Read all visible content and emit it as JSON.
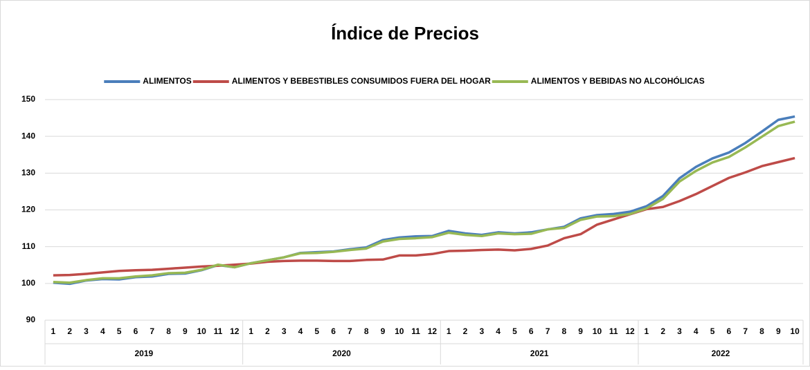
{
  "chart_data": {
    "type": "line",
    "title": "Índice de Precios",
    "groups": [
      {
        "label": "2019",
        "categories": [
          "1",
          "2",
          "3",
          "4",
          "5",
          "6",
          "7",
          "8",
          "9",
          "10",
          "11",
          "12"
        ]
      },
      {
        "label": "2020",
        "categories": [
          "1",
          "2",
          "3",
          "4",
          "5",
          "6",
          "7",
          "8",
          "9",
          "10",
          "11",
          "12"
        ]
      },
      {
        "label": "2021",
        "categories": [
          "1",
          "2",
          "3",
          "4",
          "5",
          "6",
          "7",
          "8",
          "9",
          "10",
          "11",
          "12"
        ]
      },
      {
        "label": "2022",
        "categories": [
          "1",
          "2",
          "3",
          "4",
          "5",
          "6",
          "7",
          "8",
          "9",
          "10"
        ]
      }
    ],
    "series": [
      {
        "name": "ALIMENTOS",
        "color": "#4a7ebb",
        "values": [
          100.2,
          99.9,
          100.8,
          101.2,
          101.1,
          101.7,
          101.9,
          102.6,
          102.7,
          103.6,
          105.0,
          104.4,
          105.5,
          106.3,
          107.1,
          108.3,
          108.5,
          108.7,
          109.3,
          109.8,
          111.8,
          112.5,
          112.8,
          112.9,
          114.3,
          113.6,
          113.2,
          113.9,
          113.6,
          113.9,
          114.7,
          115.4,
          117.7,
          118.6,
          118.9,
          119.5,
          121.0,
          123.8,
          128.6,
          131.7,
          134.0,
          135.6,
          138.2,
          141.3,
          144.5,
          145.4
        ]
      },
      {
        "name": "ALIMENTOS Y BEBESTIBLES CONSUMIDOS FUERA DEL HOGAR",
        "color": "#be4b48",
        "values": [
          102.2,
          102.3,
          102.6,
          103.0,
          103.4,
          103.6,
          103.7,
          104.0,
          104.3,
          104.6,
          104.8,
          105.1,
          105.4,
          105.9,
          106.1,
          106.2,
          106.2,
          106.1,
          106.1,
          106.4,
          106.5,
          107.6,
          107.6,
          108.0,
          108.8,
          108.9,
          109.1,
          109.2,
          109.0,
          109.4,
          110.3,
          112.3,
          113.4,
          116.0,
          117.4,
          118.8,
          120.2,
          120.8,
          122.4,
          124.3,
          126.5,
          128.7,
          130.2,
          131.9,
          133.0,
          134.1
        ]
      },
      {
        "name": "ALIMENTOS Y BEBIDAS NO ALCOHÓLICAS",
        "color": "#98b954",
        "values": [
          100.4,
          100.2,
          100.9,
          101.4,
          101.4,
          101.9,
          102.2,
          102.8,
          102.9,
          103.7,
          105.1,
          104.4,
          105.5,
          106.3,
          107.1,
          108.2,
          108.3,
          108.6,
          109.1,
          109.5,
          111.4,
          112.1,
          112.3,
          112.6,
          113.8,
          113.2,
          112.9,
          113.6,
          113.4,
          113.5,
          114.7,
          115.1,
          117.3,
          118.2,
          118.3,
          118.9,
          120.4,
          123.0,
          127.7,
          130.6,
          132.9,
          134.4,
          137.0,
          139.9,
          142.8,
          144.0
        ]
      }
    ],
    "ylim": [
      90,
      150
    ],
    "yticks": [
      90,
      100,
      110,
      120,
      130,
      140,
      150
    ],
    "grid": true,
    "legend": "top"
  }
}
